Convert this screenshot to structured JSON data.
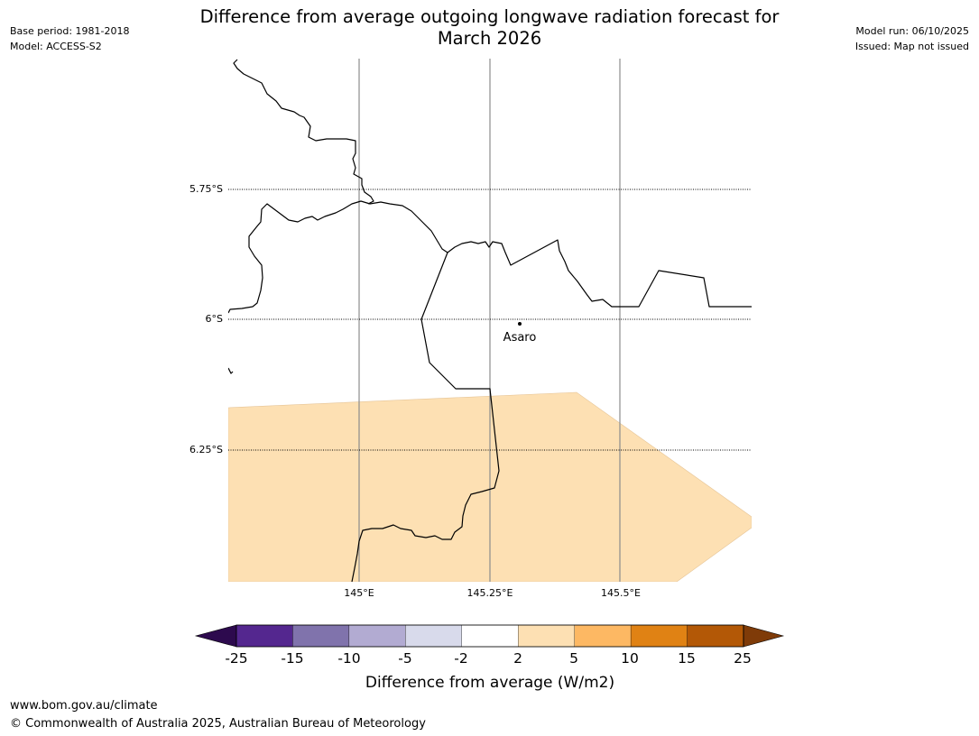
{
  "header": {
    "title_line1": "Difference from average outgoing longwave radiation forecast for",
    "title_line2": "March 2026",
    "base_period": "Base period: 1981-2018",
    "model": "Model: ACCESS-S2",
    "model_run": "Model run: 06/10/2025",
    "issued": "Issued: Map not issued"
  },
  "map": {
    "lat_labels": [
      "5.75°S",
      "6°S",
      "6.25°S"
    ],
    "lon_labels": [
      "145°E",
      "145.25°E",
      "145.5°E"
    ],
    "place": {
      "name": "Asaro"
    }
  },
  "colorbar": {
    "label": "Difference from average (W/m2)",
    "ticks": [
      "-25",
      "-15",
      "-10",
      "-5",
      "-2",
      "2",
      "5",
      "10",
      "15",
      "25"
    ],
    "colors": [
      "#2d0a4e",
      "#54278f",
      "#8073ac",
      "#b2abd2",
      "#d8daeb",
      "#ffffff",
      "#fde0b3",
      "#fdb863",
      "#e08214",
      "#b35806",
      "#7f3b08"
    ]
  },
  "footer": {
    "url": "www.bom.gov.au/climate",
    "copyright": "© Commonwealth of Australia 2025, Australian Bureau of Meteorology"
  }
}
